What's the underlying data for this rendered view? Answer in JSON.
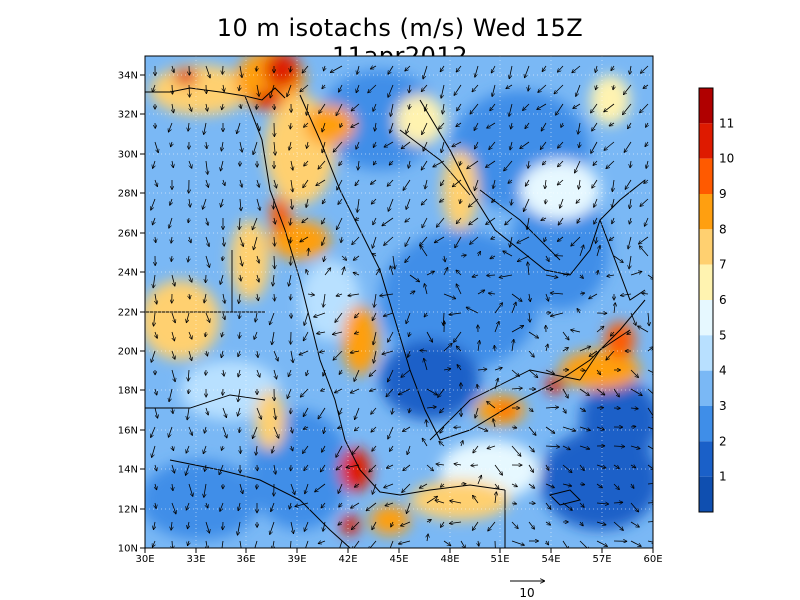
{
  "title": "10 m isotachs (m/s) Wed 15Z 11apr2012",
  "lat_labels": [
    "34N",
    "32N",
    "30N",
    "28N",
    "26N",
    "24N",
    "22N",
    "20N",
    "18N",
    "16N",
    "14N",
    "12N",
    "10N"
  ],
  "lon_labels": [
    "30E",
    "33E",
    "36E",
    "39E",
    "42E",
    "45E",
    "48E",
    "51E",
    "54E",
    "57E",
    "60E"
  ],
  "colorbar": {
    "labels": [
      "11",
      "10",
      "9",
      "8",
      "7",
      "6",
      "5",
      "4",
      "3",
      "2",
      "1"
    ],
    "colors": [
      "#b00000",
      "#de1a00",
      "#ff5a00",
      "#ff9f10",
      "#ffd070",
      "#fff3b0",
      "#e6f8ff",
      "#b8e0ff",
      "#7ab8f5",
      "#3f8ee8",
      "#1a60c8",
      "#0f4fb0"
    ]
  },
  "reference_vector": {
    "label": "10"
  },
  "map": {
    "lon_range": [
      30,
      60
    ],
    "lat_range": [
      10,
      35
    ],
    "region": "Arabian Peninsula, Red Sea and Horn of Africa"
  }
}
